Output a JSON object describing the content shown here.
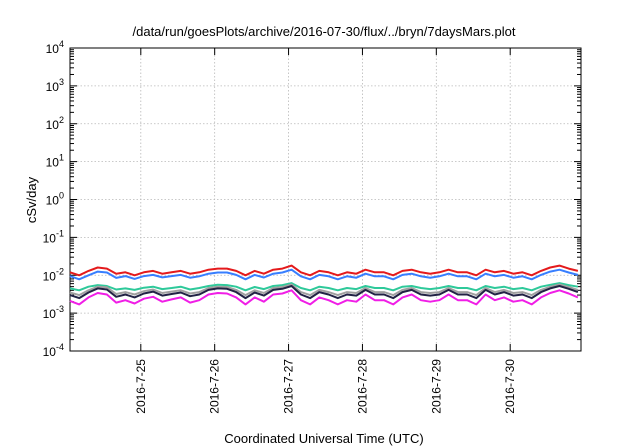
{
  "chart_data": {
    "type": "line",
    "title": "/data/run/goesPlots/archive/2016-07-30/flux/../bryn/7daysMars.plot",
    "xlabel": "Coordinated Universal Time (UTC)",
    "ylabel": "cSv/day",
    "yscale": "log",
    "ylim": [
      0.0001,
      10000
    ],
    "yticks": [
      {
        "base": "10",
        "exp": "4"
      },
      {
        "base": "10",
        "exp": "3"
      },
      {
        "base": "10",
        "exp": "2"
      },
      {
        "base": "10",
        "exp": "1"
      },
      {
        "base": "10",
        "exp": "0"
      },
      {
        "base": "10",
        "exp": "-1"
      },
      {
        "base": "10",
        "exp": "-2"
      },
      {
        "base": "10",
        "exp": "-3"
      },
      {
        "base": "10",
        "exp": "-4"
      }
    ],
    "xlim": [
      "2016-07-24T01:00",
      "2016-07-30T23:00"
    ],
    "xticks": [
      "2016-7-25",
      "2016-7-26",
      "2016-7-27",
      "2016-7-28",
      "2016-7-29",
      "2016-7-30"
    ],
    "grid": true,
    "legend": "none",
    "x": [
      "2016-07-24T01:00",
      "2016-07-24T04:00",
      "2016-07-24T07:00",
      "2016-07-24T10:00",
      "2016-07-24T13:00",
      "2016-07-24T16:00",
      "2016-07-24T19:00",
      "2016-07-24T22:00",
      "2016-07-25T01:00",
      "2016-07-25T04:00",
      "2016-07-25T07:00",
      "2016-07-25T10:00",
      "2016-07-25T13:00",
      "2016-07-25T16:00",
      "2016-07-25T19:00",
      "2016-07-25T22:00",
      "2016-07-26T01:00",
      "2016-07-26T04:00",
      "2016-07-26T07:00",
      "2016-07-26T10:00",
      "2016-07-26T13:00",
      "2016-07-26T16:00",
      "2016-07-26T19:00",
      "2016-07-26T22:00",
      "2016-07-27T01:00",
      "2016-07-27T04:00",
      "2016-07-27T07:00",
      "2016-07-27T10:00",
      "2016-07-27T13:00",
      "2016-07-27T16:00",
      "2016-07-27T19:00",
      "2016-07-27T22:00",
      "2016-07-28T01:00",
      "2016-07-28T04:00",
      "2016-07-28T07:00",
      "2016-07-28T10:00",
      "2016-07-28T13:00",
      "2016-07-28T16:00",
      "2016-07-28T19:00",
      "2016-07-28T22:00",
      "2016-07-29T01:00",
      "2016-07-29T04:00",
      "2016-07-29T07:00",
      "2016-07-29T10:00",
      "2016-07-29T13:00",
      "2016-07-29T16:00",
      "2016-07-29T19:00",
      "2016-07-29T22:00",
      "2016-07-30T01:00",
      "2016-07-30T04:00",
      "2016-07-30T07:00",
      "2016-07-30T10:00",
      "2016-07-30T13:00",
      "2016-07-30T16:00",
      "2016-07-30T19:00",
      "2016-07-30T22:00"
    ],
    "series": [
      {
        "color": "#e41a1c",
        "values": [
          0.012,
          0.01,
          0.013,
          0.016,
          0.015,
          0.011,
          0.012,
          0.01,
          0.012,
          0.013,
          0.011,
          0.012,
          0.013,
          0.011,
          0.012,
          0.014,
          0.015,
          0.015,
          0.013,
          0.01,
          0.013,
          0.011,
          0.014,
          0.015,
          0.018,
          0.012,
          0.01,
          0.013,
          0.012,
          0.01,
          0.012,
          0.011,
          0.014,
          0.012,
          0.012,
          0.01,
          0.013,
          0.014,
          0.012,
          0.011,
          0.012,
          0.014,
          0.012,
          0.012,
          0.01,
          0.014,
          0.012,
          0.013,
          0.011,
          0.012,
          0.01,
          0.013,
          0.016,
          0.018,
          0.015,
          0.013
        ]
      },
      {
        "color": "#377eff",
        "values": [
          0.0095,
          0.0078,
          0.01,
          0.0125,
          0.0118,
          0.0085,
          0.0095,
          0.008,
          0.0095,
          0.0102,
          0.0088,
          0.0095,
          0.0102,
          0.0086,
          0.0094,
          0.011,
          0.0118,
          0.0118,
          0.0102,
          0.0078,
          0.0102,
          0.0087,
          0.011,
          0.0118,
          0.014,
          0.0094,
          0.0078,
          0.0102,
          0.0094,
          0.0078,
          0.0094,
          0.0086,
          0.011,
          0.0094,
          0.0094,
          0.0078,
          0.0102,
          0.011,
          0.0094,
          0.0086,
          0.0094,
          0.011,
          0.0094,
          0.0094,
          0.0078,
          0.011,
          0.0094,
          0.0102,
          0.0086,
          0.0094,
          0.0078,
          0.0102,
          0.0125,
          0.014,
          0.0118,
          0.0102
        ]
      },
      {
        "color": "#2ec99a",
        "values": [
          0.0045,
          0.004,
          0.005,
          0.0055,
          0.0052,
          0.0042,
          0.0045,
          0.0041,
          0.0047,
          0.005,
          0.0043,
          0.0046,
          0.005,
          0.0042,
          0.0046,
          0.0052,
          0.0056,
          0.0055,
          0.005,
          0.004,
          0.0049,
          0.0043,
          0.0052,
          0.0055,
          0.0062,
          0.0046,
          0.004,
          0.005,
          0.0046,
          0.004,
          0.0046,
          0.0043,
          0.0052,
          0.0046,
          0.0046,
          0.004,
          0.005,
          0.0052,
          0.0046,
          0.0043,
          0.0046,
          0.0052,
          0.0046,
          0.0046,
          0.004,
          0.0052,
          0.0046,
          0.005,
          0.0043,
          0.0046,
          0.004,
          0.005,
          0.0056,
          0.0062,
          0.0055,
          0.005
        ]
      },
      {
        "color": "#a0a0a0",
        "values": [
          0.0035,
          0.003,
          0.004,
          0.005,
          0.0048,
          0.0032,
          0.0036,
          0.0031,
          0.0038,
          0.0042,
          0.0034,
          0.0037,
          0.004,
          0.0033,
          0.0036,
          0.0046,
          0.005,
          0.0049,
          0.0041,
          0.003,
          0.004,
          0.0034,
          0.0046,
          0.0049,
          0.0057,
          0.0036,
          0.003,
          0.0041,
          0.0036,
          0.003,
          0.0036,
          0.0034,
          0.0046,
          0.0036,
          0.0036,
          0.003,
          0.0041,
          0.0046,
          0.0036,
          0.0034,
          0.0036,
          0.0046,
          0.0036,
          0.0036,
          0.003,
          0.0046,
          0.0036,
          0.0041,
          0.0034,
          0.0036,
          0.003,
          0.0041,
          0.005,
          0.0057,
          0.0049,
          0.0041
        ]
      },
      {
        "color": "#222244",
        "values": [
          0.003,
          0.0025,
          0.0035,
          0.0045,
          0.0042,
          0.0027,
          0.0031,
          0.0026,
          0.0033,
          0.0037,
          0.0029,
          0.0032,
          0.0035,
          0.0028,
          0.0031,
          0.0041,
          0.0045,
          0.0044,
          0.0036,
          0.0025,
          0.0035,
          0.0029,
          0.0041,
          0.0044,
          0.0052,
          0.0031,
          0.0025,
          0.0036,
          0.0031,
          0.0025,
          0.0031,
          0.0029,
          0.0041,
          0.0031,
          0.0031,
          0.0025,
          0.0036,
          0.0041,
          0.0031,
          0.0029,
          0.0031,
          0.0041,
          0.0031,
          0.0031,
          0.0025,
          0.0041,
          0.0031,
          0.0036,
          0.0029,
          0.0031,
          0.0025,
          0.0036,
          0.0045,
          0.0052,
          0.0044,
          0.0036
        ]
      },
      {
        "color": "#f01ee6",
        "values": [
          0.0021,
          0.0017,
          0.0026,
          0.0034,
          0.0031,
          0.0019,
          0.0022,
          0.0018,
          0.0024,
          0.0027,
          0.002,
          0.0023,
          0.0026,
          0.0019,
          0.0022,
          0.0031,
          0.0034,
          0.0033,
          0.0026,
          0.0017,
          0.0026,
          0.002,
          0.0031,
          0.0033,
          0.004,
          0.0022,
          0.0017,
          0.0026,
          0.0022,
          0.0017,
          0.0022,
          0.002,
          0.0031,
          0.0022,
          0.0022,
          0.0017,
          0.0026,
          0.0031,
          0.0022,
          0.002,
          0.0022,
          0.0031,
          0.0022,
          0.0022,
          0.0017,
          0.0031,
          0.0022,
          0.0026,
          0.002,
          0.0022,
          0.0017,
          0.0026,
          0.0034,
          0.004,
          0.0033,
          0.0026
        ]
      }
    ]
  }
}
